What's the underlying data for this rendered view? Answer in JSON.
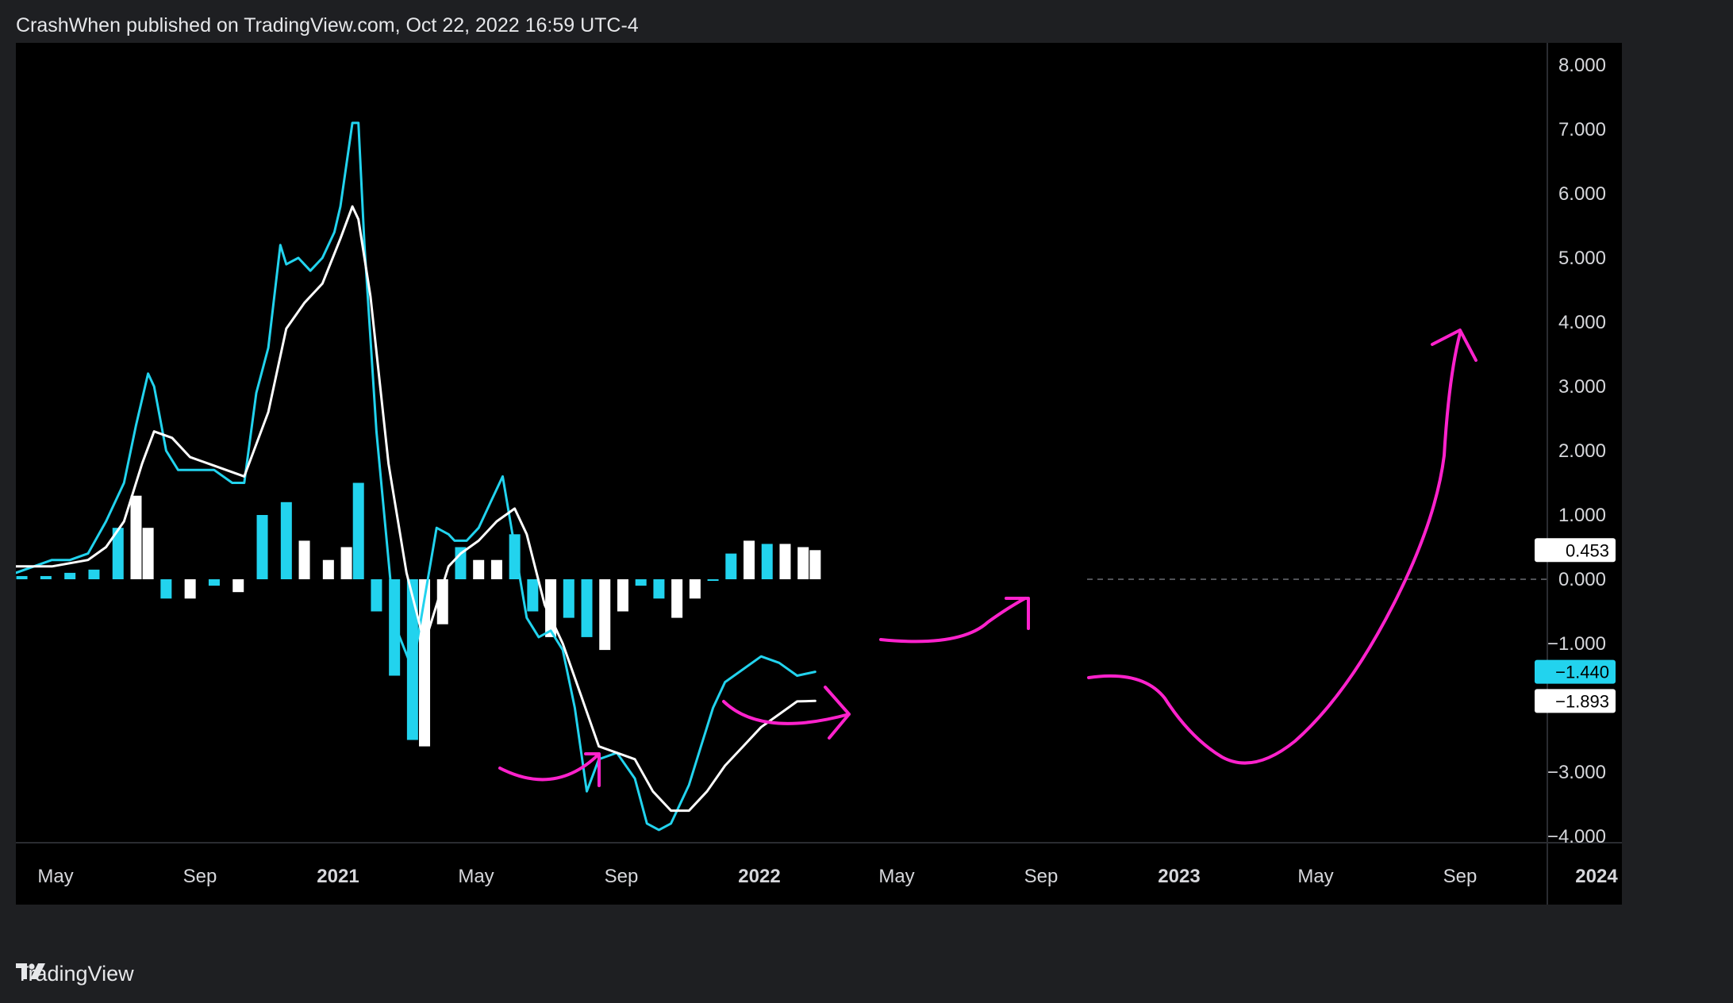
{
  "header": {
    "publish_line": "CrashWhen published on TradingView.com, Oct 22, 2022 16:59 UTC-4"
  },
  "footer": {
    "brand": "TradingView",
    "logo_icon": "tradingview-logo-icon"
  },
  "colors": {
    "background": "#000000",
    "frame": "#1e1f22",
    "macd_line": "#22d3ee",
    "signal_line": "#ffffff",
    "histogram_rising": "#22d3ee",
    "histogram_falling": "#ffffff",
    "annotation": "#ff22cc"
  },
  "chart_data": {
    "type": "line",
    "title": "",
    "xlabel": "",
    "ylabel": "",
    "ylim": [
      -5.0,
      8.4
    ],
    "y_ticks": [
      "8.000",
      "7.000",
      "6.000",
      "5.000",
      "4.000",
      "3.000",
      "2.000",
      "1.000",
      "0.000",
      "−1.000",
      "−3.000",
      "−4.000"
    ],
    "x_ticks": [
      {
        "label": "May",
        "year": false
      },
      {
        "label": "Sep",
        "year": false
      },
      {
        "label": "2021",
        "year": true
      },
      {
        "label": "May",
        "year": false
      },
      {
        "label": "Sep",
        "year": false
      },
      {
        "label": "2022",
        "year": true
      },
      {
        "label": "May",
        "year": false
      },
      {
        "label": "Sep",
        "year": false
      },
      {
        "label": "2023",
        "year": true
      },
      {
        "label": "May",
        "year": false
      },
      {
        "label": "Sep",
        "year": false
      },
      {
        "label": "2024",
        "year": true
      }
    ],
    "x_start": "2020-04-01",
    "zero_line": "dashed",
    "series": [
      {
        "name": "",
        "role": "macd",
        "x": [
          "2020-04-01",
          "2020-04-22",
          "2020-05-13",
          "2020-06-03",
          "2020-06-24",
          "2020-07-15",
          "2020-08-05",
          "2020-08-19",
          "2020-09-02",
          "2020-09-09",
          "2020-09-23",
          "2020-10-07",
          "2020-10-28",
          "2020-11-18",
          "2020-12-09",
          "2020-12-23",
          "2021-01-06",
          "2021-01-20",
          "2021-02-03",
          "2021-02-10",
          "2021-02-24",
          "2021-03-10",
          "2021-03-24",
          "2021-04-07",
          "2021-04-14",
          "2021-04-28",
          "2021-05-05",
          "2021-05-12",
          "2021-05-26",
          "2021-06-16",
          "2021-07-07",
          "2021-07-21",
          "2021-08-04",
          "2021-08-18",
          "2021-08-25",
          "2021-09-08",
          "2021-09-22",
          "2021-10-06",
          "2021-10-20",
          "2021-11-03",
          "2021-11-17",
          "2021-12-01",
          "2021-12-15",
          "2021-12-29",
          "2022-01-12",
          "2022-01-26",
          "2022-02-09",
          "2022-03-02",
          "2022-03-23",
          "2022-04-06",
          "2022-04-20",
          "2022-05-04",
          "2022-05-25",
          "2022-06-08",
          "2022-06-22",
          "2022-07-06",
          "2022-07-27",
          "2022-08-17",
          "2022-09-07",
          "2022-09-28",
          "2022-10-19"
        ],
        "values": [
          0.1,
          0.2,
          0.3,
          0.3,
          0.4,
          0.9,
          1.5,
          2.4,
          3.2,
          3.0,
          2.0,
          1.7,
          1.7,
          1.7,
          1.5,
          1.5,
          2.9,
          3.6,
          5.2,
          4.9,
          5.0,
          4.8,
          5.0,
          5.4,
          5.8,
          7.1,
          7.1,
          5.2,
          2.3,
          -0.7,
          -1.4,
          -0.3,
          0.8,
          0.7,
          0.6,
          0.6,
          0.8,
          1.2,
          1.6,
          0.5,
          -0.6,
          -0.9,
          -0.8,
          -1.1,
          -2.0,
          -3.3,
          -2.8,
          -2.7,
          -3.1,
          -3.8,
          -3.9,
          -3.8,
          -3.2,
          -2.6,
          -2.0,
          -1.6,
          -1.4,
          -1.2,
          -1.3,
          -1.5,
          -1.44
        ]
      },
      {
        "name": "",
        "role": "signal",
        "x": [
          "2020-04-01",
          "2020-05-13",
          "2020-06-24",
          "2020-07-15",
          "2020-08-05",
          "2020-08-26",
          "2020-09-09",
          "2020-09-30",
          "2020-10-21",
          "2020-11-11",
          "2020-12-02",
          "2020-12-23",
          "2021-01-20",
          "2021-02-10",
          "2021-03-03",
          "2021-03-24",
          "2021-04-14",
          "2021-04-28",
          "2021-05-05",
          "2021-05-19",
          "2021-06-09",
          "2021-06-30",
          "2021-07-21",
          "2021-08-04",
          "2021-08-18",
          "2021-09-01",
          "2021-09-22",
          "2021-10-13",
          "2021-11-03",
          "2021-11-17",
          "2021-12-08",
          "2021-12-29",
          "2022-01-19",
          "2022-02-09",
          "2022-03-02",
          "2022-03-23",
          "2022-04-13",
          "2022-05-04",
          "2022-05-25",
          "2022-06-15",
          "2022-07-06",
          "2022-07-27",
          "2022-08-17",
          "2022-09-07",
          "2022-09-28",
          "2022-10-19"
        ],
        "values": [
          0.2,
          0.2,
          0.3,
          0.5,
          0.9,
          1.8,
          2.3,
          2.2,
          1.9,
          1.8,
          1.7,
          1.6,
          2.6,
          3.9,
          4.3,
          4.6,
          5.3,
          5.8,
          5.6,
          4.4,
          1.8,
          0.1,
          -1.0,
          -0.4,
          0.2,
          0.4,
          0.6,
          0.9,
          1.1,
          0.7,
          -0.4,
          -1.0,
          -1.8,
          -2.6,
          -2.7,
          -2.8,
          -3.3,
          -3.6,
          -3.6,
          -3.3,
          -2.9,
          -2.6,
          -2.3,
          -2.1,
          -1.9,
          -1.893
        ]
      }
    ],
    "histogram": {
      "x": [
        "2020-04-08",
        "2020-05-06",
        "2020-06-03",
        "2020-07-01",
        "2020-07-29",
        "2020-08-19",
        "2020-09-02",
        "2020-09-23",
        "2020-10-21",
        "2020-11-18",
        "2020-12-16",
        "2021-01-13",
        "2021-02-10",
        "2021-03-03",
        "2021-03-31",
        "2021-04-21",
        "2021-05-05",
        "2021-05-26",
        "2021-06-16",
        "2021-07-07",
        "2021-07-21",
        "2021-08-11",
        "2021-09-01",
        "2021-09-22",
        "2021-10-13",
        "2021-11-03",
        "2021-11-24",
        "2021-12-15",
        "2022-01-05",
        "2022-01-26",
        "2022-02-16",
        "2022-03-09",
        "2022-03-30",
        "2022-04-20",
        "2022-05-11",
        "2022-06-01",
        "2022-06-22",
        "2022-07-13",
        "2022-08-03",
        "2022-08-24",
        "2022-09-14",
        "2022-10-05",
        "2022-10-19"
      ],
      "values": [
        0.05,
        0.05,
        0.1,
        0.15,
        0.8,
        1.3,
        0.8,
        -0.3,
        -0.3,
        -0.1,
        -0.2,
        1.0,
        1.2,
        0.6,
        0.3,
        0.5,
        1.5,
        -0.5,
        -1.5,
        -2.5,
        -2.6,
        -0.7,
        0.5,
        0.3,
        0.3,
        0.7,
        -0.5,
        -0.9,
        -0.6,
        -0.9,
        -1.1,
        -0.5,
        -0.1,
        -0.3,
        -0.6,
        -0.3,
        0.0,
        0.4,
        0.6,
        0.55,
        0.55,
        0.5,
        0.453
      ],
      "rising": [
        true,
        true,
        true,
        true,
        true,
        false,
        false,
        true,
        false,
        true,
        false,
        true,
        true,
        false,
        false,
        false,
        true,
        true,
        true,
        true,
        false,
        false,
        true,
        false,
        false,
        true,
        true,
        false,
        true,
        true,
        false,
        false,
        true,
        true,
        false,
        false,
        true,
        true,
        false,
        true,
        false,
        false,
        false
      ]
    },
    "last_values": {
      "histogram": "0.453",
      "macd": "−1.440",
      "signal": "−1.893"
    },
    "annotations": [
      {
        "type": "hand-drawn-arrow",
        "meaning": "curl up",
        "x": [
          "2021-06-20",
          "2021-08-01"
        ]
      },
      {
        "type": "hand-drawn-arrow",
        "meaning": "curl up",
        "x": [
          "2021-12-15",
          "2022-03-20"
        ]
      },
      {
        "type": "hand-drawn-arrow",
        "meaning": "curl up",
        "x": [
          "2022-05-20",
          "2022-08-20"
        ]
      },
      {
        "type": "hand-drawn-projection",
        "x": [
          "2022-11-01",
          "2022-12-20",
          "2023-02-01",
          "2023-04-01",
          "2023-06-01",
          "2023-08-01",
          "2023-08-25"
        ],
        "values": [
          -1.5,
          -1.6,
          -2.9,
          -2.2,
          0.2,
          3.9,
          3.9
        ]
      }
    ]
  }
}
